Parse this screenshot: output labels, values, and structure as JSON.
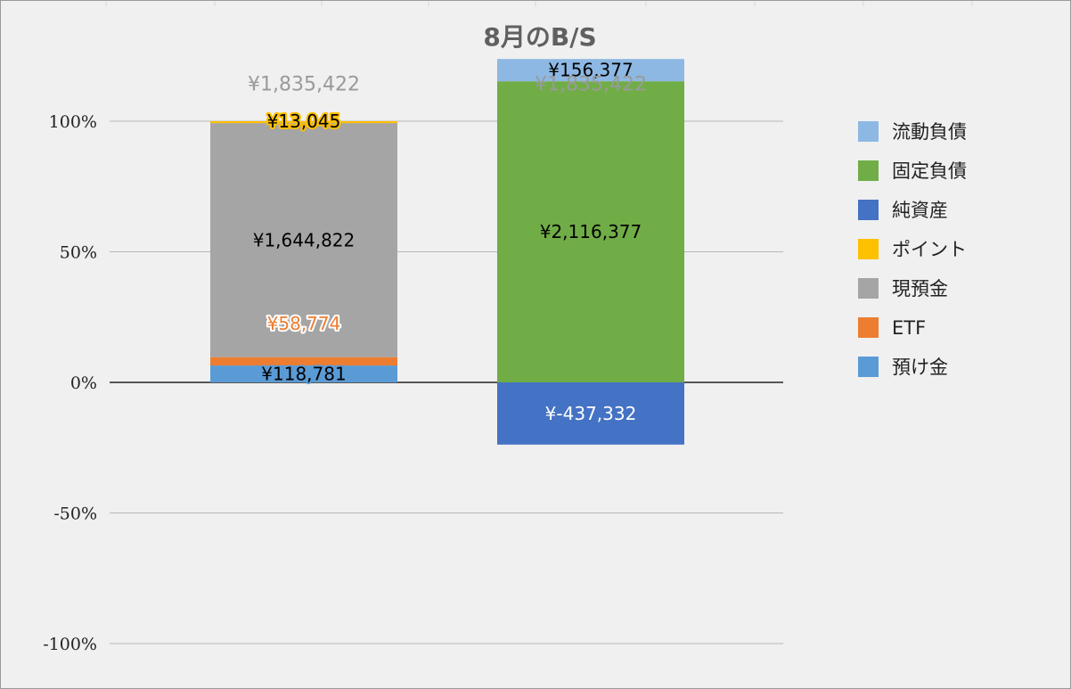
{
  "chart_data": {
    "type": "bar",
    "stacking": "percent",
    "title": "8月のB/S",
    "ylim": [
      -100,
      100
    ],
    "y_ticks": [
      {
        "value": 100,
        "label": "100%"
      },
      {
        "value": 50,
        "label": "50%"
      },
      {
        "value": 0,
        "label": "0%"
      },
      {
        "value": -50,
        "label": "-50%"
      },
      {
        "value": -100,
        "label": "-100%"
      }
    ],
    "grid": true,
    "legend_position": "right",
    "bars": [
      {
        "total_label": "¥1,835,422",
        "segments": [
          {
            "name": "預け金",
            "value": 118781,
            "label": "¥118,781",
            "label_color": "#000000",
            "label_halo": "#5b9bd5"
          },
          {
            "name": "ETF",
            "value": 58774,
            "label": "¥58,774",
            "label_color": "#ed7d31",
            "label_halo": "#ffffff"
          },
          {
            "name": "現預金",
            "value": 1644822,
            "label": "¥1,644,822",
            "label_color": "#000000",
            "label_halo": ""
          },
          {
            "name": "ポイント",
            "value": 13045,
            "label": "¥13,045",
            "label_color": "#000000",
            "label_halo": "#ffc000"
          }
        ]
      },
      {
        "total_label": "¥1,835,422",
        "segments": [
          {
            "name": "純資産",
            "value": -437332,
            "label": "¥-437,332",
            "label_color": "#ffffff",
            "label_halo": ""
          },
          {
            "name": "固定負債",
            "value": 2116377,
            "label": "¥2,116,377",
            "label_color": "#000000",
            "label_halo": ""
          },
          {
            "name": "流動負債",
            "value": 156377,
            "label": "¥156,377",
            "label_color": "#000000",
            "label_halo": ""
          }
        ]
      }
    ],
    "legend": [
      {
        "name": "流動負債",
        "color": "#8db8e3"
      },
      {
        "name": "固定負債",
        "color": "#70ad47"
      },
      {
        "name": "純資産",
        "color": "#4472c4"
      },
      {
        "name": "ポイント",
        "color": "#ffc000"
      },
      {
        "name": "現預金",
        "color": "#a5a5a5"
      },
      {
        "name": "ETF",
        "color": "#ed7d31"
      },
      {
        "name": "預け金",
        "color": "#5b9bd5"
      }
    ]
  }
}
